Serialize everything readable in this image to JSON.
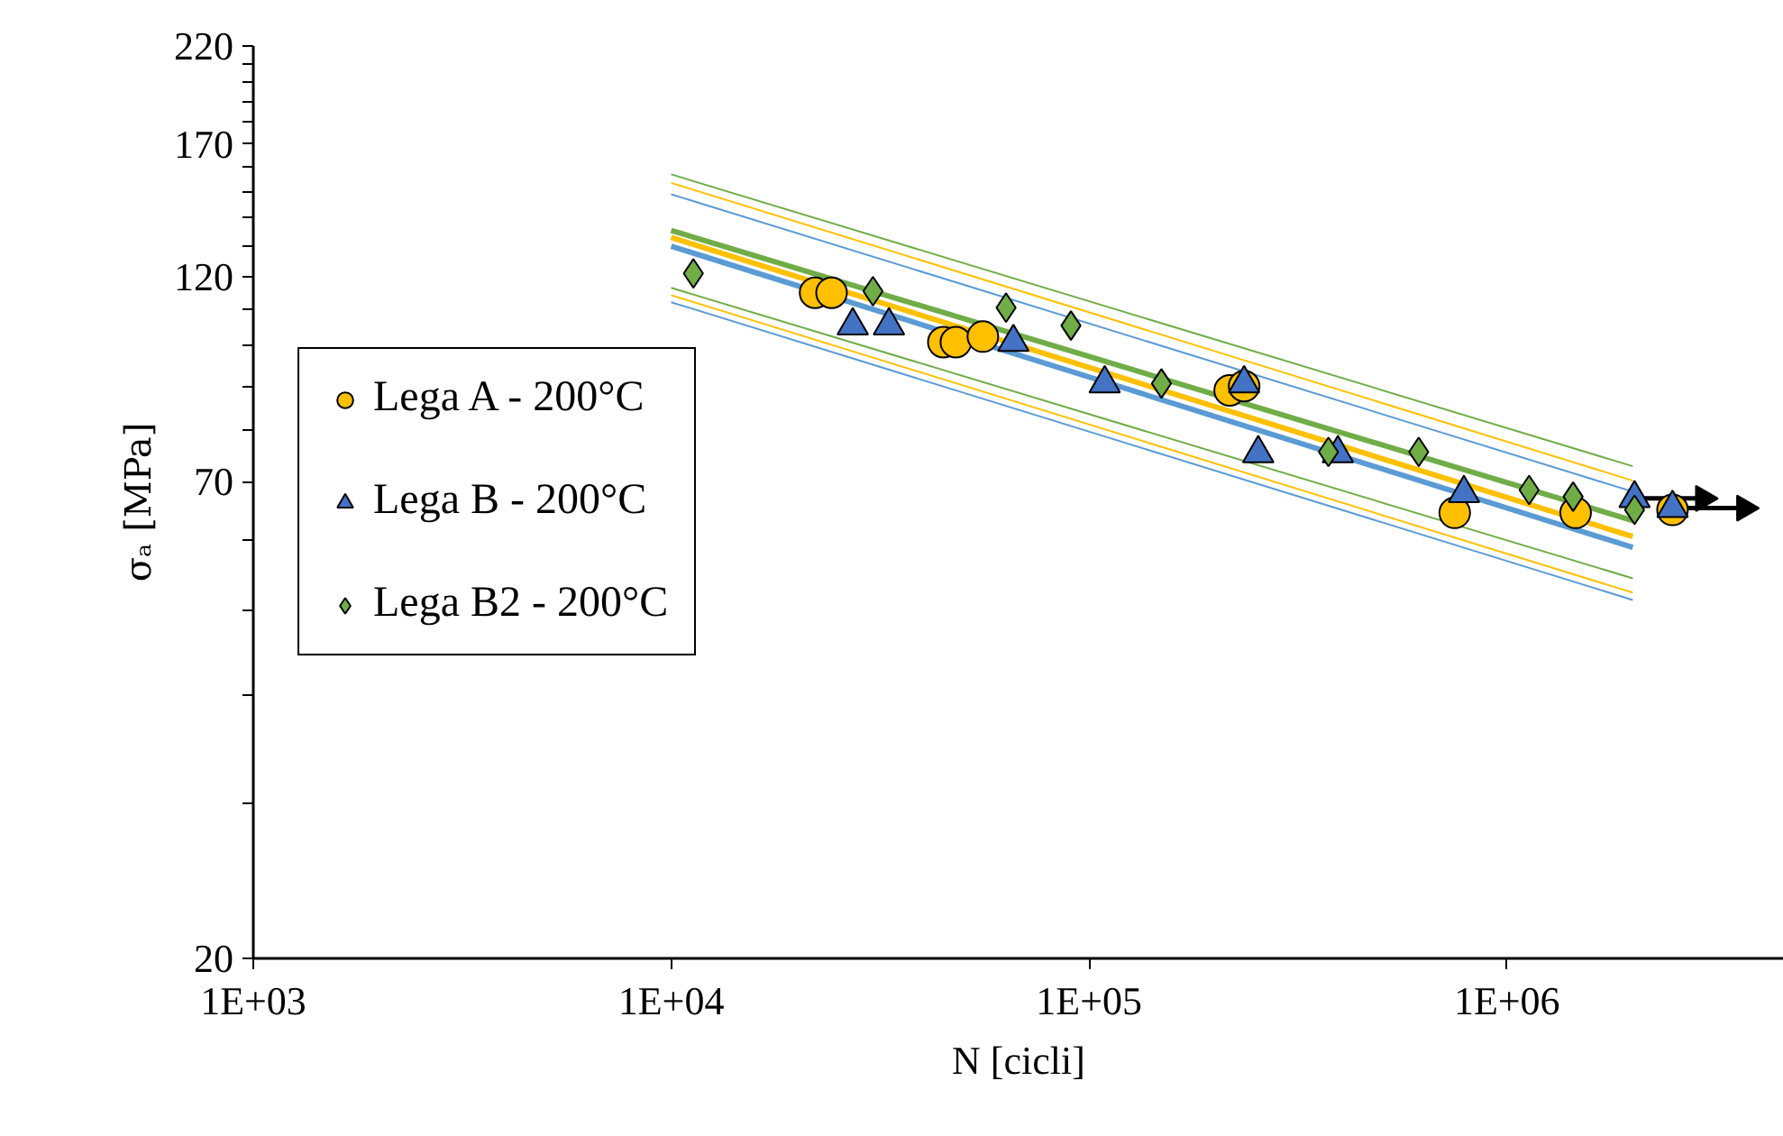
{
  "chart_data": {
    "type": "scatter",
    "xlabel": "N [cicli]",
    "ylabel": "σₐ [MPa]",
    "log": "xy",
    "grid": false,
    "legend": "left",
    "xlim": [
      1000,
      4600000
    ],
    "xticks": [
      {
        "value": 1000,
        "label": "1E+03"
      },
      {
        "value": 10000,
        "label": "1E+04"
      },
      {
        "value": 100000,
        "label": "1E+05"
      },
      {
        "value": 1000000,
        "label": "1E+06"
      }
    ],
    "ylim": [
      20,
      220
    ],
    "yticks": [
      20,
      {
        "value": 30,
        "label": null
      },
      {
        "value": 40,
        "label": null
      },
      {
        "value": 50,
        "label": null
      },
      {
        "value": 60,
        "label": null
      },
      70,
      {
        "value": 80,
        "label": null
      },
      {
        "value": 90,
        "label": null
      },
      {
        "value": 100,
        "label": null
      },
      {
        "value": 110,
        "label": null
      },
      120,
      {
        "value": 130,
        "label": null
      },
      {
        "value": 140,
        "label": null
      },
      {
        "value": 150,
        "label": null
      },
      {
        "value": 160,
        "label": null
      },
      170,
      {
        "value": 180,
        "label": null
      },
      {
        "value": 190,
        "label": null
      },
      {
        "value": 200,
        "label": null
      },
      {
        "value": 210,
        "label": null
      },
      220
    ],
    "series": [
      {
        "type": "line",
        "color": "#70ad47",
        "x": [
          10000,
          2000000
        ],
        "values": [
          157,
          72.9
        ]
      },
      {
        "type": "line",
        "color": "#ffc000",
        "x": [
          10000,
          2000000
        ],
        "values": [
          153.5,
          70.2
        ]
      },
      {
        "type": "line",
        "color": "#5b9bd5",
        "x": [
          10000,
          2000000
        ],
        "values": [
          149,
          68.2
        ]
      },
      {
        "type": "line",
        "color": "#70ad47",
        "x": [
          10000,
          2000000
        ],
        "values": [
          116.5,
          54.3
        ]
      },
      {
        "type": "line",
        "color": "#ffc000",
        "x": [
          10000,
          2000000
        ],
        "values": [
          114.3,
          52.3
        ]
      },
      {
        "type": "line",
        "color": "#5b9bd5",
        "x": [
          10000,
          2000000
        ],
        "values": [
          112.2,
          51.3
        ]
      },
      {
        "type": "line",
        "color": "#5b9bd5",
        "x": [
          10000,
          2000000
        ],
        "values": [
          130,
          58.9
        ]
      },
      {
        "type": "line",
        "color": "#ffc000",
        "x": [
          10000,
          2000000
        ],
        "values": [
          133,
          60.6
        ]
      },
      {
        "type": "line",
        "color": "#70ad47",
        "x": [
          10000,
          2000000
        ],
        "values": [
          135.5,
          63.2
        ]
      },
      {
        "type": "line",
        "color": "#000000",
        "x": [
          2020000,
          2950000
        ],
        "values": [
          67,
          67
        ],
        "marker": "triangle"
      },
      {
        "type": "line",
        "color": "#000000",
        "x": [
          2490000,
          3700000
        ],
        "values": [
          65.3,
          65.3
        ],
        "marker": "triangle"
      },
      {
        "name": "Lega A - 200°C",
        "color": "#ffc000",
        "marker": "circle",
        "x": [
          22100,
          24200,
          44800,
          48000,
          55700,
          217000,
          235000,
          750000,
          1460000,
          2490000
        ],
        "values": [
          115,
          115,
          101,
          101,
          102.5,
          89,
          90,
          64.5,
          64.5,
          65
        ]
      },
      {
        "name": "Lega B - 200°C",
        "color": "#4472c4",
        "marker": "triangle",
        "x": [
          27200,
          33200,
          65900,
          109000,
          235000,
          254000,
          394000,
          789000,
          2020000,
          2490000
        ],
        "values": [
          105.5,
          105.5,
          101,
          90.6,
          90.6,
          75.4,
          75.4,
          67.9,
          67,
          65.3
        ]
      },
      {
        "name": "Lega B2 - 200°C",
        "color": "#70ad47",
        "marker": "diamond",
        "x": [
          11300,
          30400,
          63300,
          90500,
          149000,
          374000,
          615000,
          1130000,
          1440000,
          2020000
        ],
        "values": [
          121,
          115.5,
          110.6,
          105.5,
          90.6,
          75.7,
          75.7,
          68.5,
          67.3,
          65
        ]
      }
    ]
  }
}
